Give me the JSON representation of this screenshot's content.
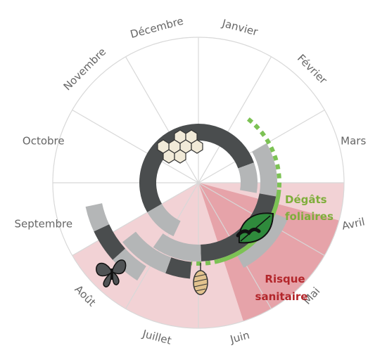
{
  "months": [
    "Janvier",
    "Février",
    "Mars",
    "Avril",
    "Mai",
    "Juin",
    "Juillet",
    "Août",
    "Septembre",
    "Octobre",
    "Novembre",
    "Décembre"
  ],
  "damage_label": [
    "Dégâts",
    "foliaires"
  ],
  "risk_label": [
    "Risque",
    "sanitaire"
  ]
}
